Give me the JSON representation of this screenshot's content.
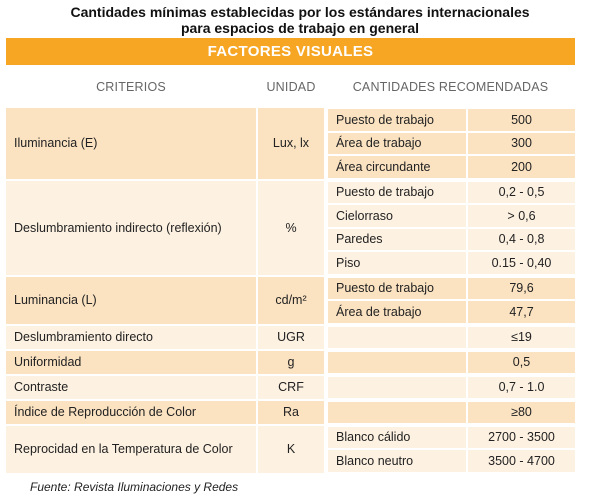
{
  "title_line1": "Cantidades mínimas establecidas por los estándares internacionales",
  "title_line2": "para espacios de trabajo en general",
  "banner": "FACTORES VISUALES",
  "headers": {
    "criterios": "CRITERIOS",
    "unidad": "UNIDAD",
    "cantidades": "CANTIDADES RECOMENDADAS"
  },
  "rows": [
    {
      "criterio": "Iluminancia (E)",
      "unidad": "Lux, lx",
      "items": [
        {
          "label": "Puesto de trabajo",
          "value": "500"
        },
        {
          "label": "Área de trabajo",
          "value": "300"
        },
        {
          "label": "Área circundante",
          "value": "200"
        }
      ]
    },
    {
      "criterio": "Deslumbramiento indirecto (reflexión)",
      "unidad": "%",
      "items": [
        {
          "label": "Puesto de trabajo",
          "value": "0,2 - 0,5"
        },
        {
          "label": "Cielorraso",
          "value": "> 0,6"
        },
        {
          "label": "Paredes",
          "value": "0,4 - 0,8"
        },
        {
          "label": "Piso",
          "value": "0.15 - 0,40"
        }
      ]
    },
    {
      "criterio": "Luminancia (L)",
      "unidad": "cd/m²",
      "items": [
        {
          "label": "Puesto de trabajo",
          "value": "79,6"
        },
        {
          "label": "Área de trabajo",
          "value": "47,7"
        }
      ]
    },
    {
      "criterio": "Deslumbramiento directo",
      "unidad": "UGR",
      "items": [
        {
          "label": "",
          "value": "≤19"
        }
      ]
    },
    {
      "criterio": "Uniformidad",
      "unidad": "g",
      "items": [
        {
          "label": "",
          "value": "0,5"
        }
      ]
    },
    {
      "criterio": "Contraste",
      "unidad": "CRF",
      "items": [
        {
          "label": "",
          "value": "0,7 - 1.0"
        }
      ]
    },
    {
      "criterio": "Índice de Reproducción de Color",
      "unidad": "Ra",
      "items": [
        {
          "label": "",
          "value": "≥80"
        }
      ]
    },
    {
      "criterio": "Reprocidad en la Temperatura de Color",
      "unidad": "K",
      "items": [
        {
          "label": "Blanco cálido",
          "value": "2700 - 3500"
        },
        {
          "label": "Blanco neutro",
          "value": "3500 - 4700"
        }
      ]
    }
  ],
  "source": "Fuente: Revista Iluminaciones y Redes",
  "colors": {
    "banner": "#f6a623",
    "shade": "#fbe3c2",
    "light": "#fdf1e1"
  }
}
